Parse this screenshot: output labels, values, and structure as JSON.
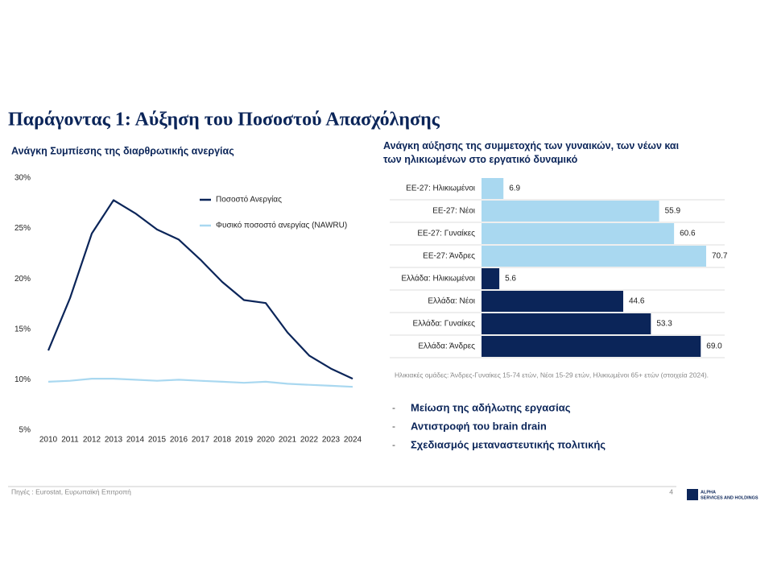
{
  "header": {
    "title": "Παράγοντας 1: Αύξηση του Ποσοστού Απασχόλησης"
  },
  "chart_data": [
    {
      "type": "line",
      "title": "Ανάγκη Συμπίεσης της διαρθρωτικής ανεργίας",
      "categories": [
        "2010",
        "2011",
        "2012",
        "2013",
        "2014",
        "2015",
        "2016",
        "2017",
        "2018",
        "2019",
        "2020",
        "2021",
        "2022",
        "2023",
        "2024"
      ],
      "series": [
        {
          "name": "Ποσοστό Ανεργίας",
          "color": "#0b2559",
          "values": [
            12.9,
            18.1,
            24.5,
            27.8,
            26.5,
            24.9,
            23.9,
            21.9,
            19.7,
            17.9,
            17.6,
            14.7,
            12.4,
            11.1,
            10.1
          ]
        },
        {
          "name": "Φυσικό ποσοστό ανεργίας (NAWRU)",
          "color": "#a9d8f0",
          "values": [
            9.8,
            9.9,
            10.1,
            10.1,
            10.0,
            9.9,
            10.0,
            9.9,
            9.8,
            9.7,
            9.8,
            9.6,
            9.5,
            9.4,
            9.3
          ]
        }
      ],
      "ylim": [
        5,
        30
      ],
      "yticks": [
        {
          "value": 5,
          "label": "5%"
        },
        {
          "value": 10,
          "label": "10%"
        },
        {
          "value": 15,
          "label": "15%"
        },
        {
          "value": 20,
          "label": "20%"
        },
        {
          "value": 25,
          "label": "25%"
        },
        {
          "value": 30,
          "label": "30%"
        }
      ],
      "legend": "top-right"
    },
    {
      "type": "hbar",
      "title": "Ανάγκη αύξησης της συμμετοχής των γυναικών, των νέων και των ηλικιωμένων στο εργατικό δυναμικό",
      "categories": [
        "ΕΕ-27: Ηλικιωμένοι",
        "ΕΕ-27: Νέοι",
        "ΕΕ-27: Γυναίκες",
        "ΕΕ-27: Άνδρες",
        "Ελλάδα: Ηλικιωμένοι",
        "Ελλάδα: Νέοι",
        "Ελλάδα: Γυναίκες",
        "Ελλάδα: Άνδρες"
      ],
      "values": [
        6.9,
        55.9,
        60.6,
        70.7,
        5.6,
        44.6,
        53.3,
        69.0
      ],
      "value_labels": [
        "6.9",
        "55.9",
        "60.6",
        "70.7",
        "5.6",
        "44.6",
        "53.3",
        "69.0"
      ],
      "colors": [
        "#a9d8f0",
        "#a9d8f0",
        "#a9d8f0",
        "#a9d8f0",
        "#0b2559",
        "#0b2559",
        "#0b2559",
        "#0b2559"
      ],
      "note": "Ηλικιακές ομάδες: Άνδρες-Γυναίκες 15-74 ετών, Νέοι 15-29 ετών, Ηλικιωμένοι 65+ ετών (στοιχεία 2024)."
    }
  ],
  "bullets": [
    "Μείωση της αδήλωτης εργασίας",
    "Αντιστροφή του brain drain",
    "Σχεδιασμός μεταναστευτικής πολιτικής"
  ],
  "footer": {
    "source": "Πηγές : Eurostat, Ευρωπαϊκή Επιτροπή",
    "page": "4",
    "logo": [
      "ALPHA",
      "SERVICES AND HOLDINGS"
    ]
  }
}
